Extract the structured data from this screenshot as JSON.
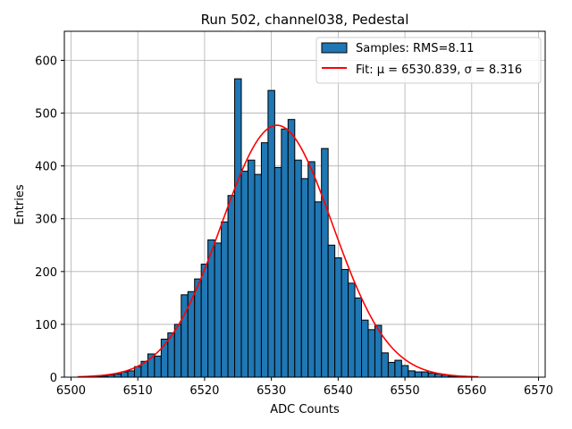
{
  "chart_data": {
    "type": "bar",
    "title": "Run 502, channel038, Pedestal",
    "xlabel": "ADC Counts",
    "ylabel": "Entries",
    "xlim": [
      6499,
      6571
    ],
    "ylim": [
      0,
      655
    ],
    "grid": true,
    "legend_placement": "top-right",
    "bin_width": 1,
    "xticks": [
      6500,
      6510,
      6520,
      6530,
      6540,
      6550,
      6560,
      6570
    ],
    "yticks": [
      0,
      100,
      200,
      300,
      400,
      500,
      600
    ],
    "series": [
      {
        "name": "Samples: RMS=8.11",
        "kind": "histogram",
        "color": "#1f77b4",
        "edgecolor": "#000000",
        "bins": [
          [
            6503,
            1
          ],
          [
            6504,
            1
          ],
          [
            6505,
            2
          ],
          [
            6506,
            4
          ],
          [
            6507,
            6
          ],
          [
            6508,
            10
          ],
          [
            6509,
            12
          ],
          [
            6510,
            20
          ],
          [
            6511,
            30
          ],
          [
            6512,
            44
          ],
          [
            6513,
            40
          ],
          [
            6514,
            72
          ],
          [
            6515,
            84
          ],
          [
            6516,
            100
          ],
          [
            6517,
            156
          ],
          [
            6518,
            162
          ],
          [
            6519,
            186
          ],
          [
            6520,
            214
          ],
          [
            6521,
            260
          ],
          [
            6522,
            254
          ],
          [
            6523,
            294
          ],
          [
            6524,
            344
          ],
          [
            6525,
            565
          ],
          [
            6526,
            390
          ],
          [
            6527,
            411
          ],
          [
            6528,
            384
          ],
          [
            6529,
            444
          ],
          [
            6530,
            543
          ],
          [
            6531,
            397
          ],
          [
            6532,
            470
          ],
          [
            6533,
            488
          ],
          [
            6534,
            411
          ],
          [
            6535,
            376
          ],
          [
            6536,
            408
          ],
          [
            6537,
            332
          ],
          [
            6538,
            433
          ],
          [
            6539,
            250
          ],
          [
            6540,
            226
          ],
          [
            6541,
            204
          ],
          [
            6542,
            178
          ],
          [
            6543,
            150
          ],
          [
            6544,
            108
          ],
          [
            6545,
            90
          ],
          [
            6546,
            98
          ],
          [
            6547,
            46
          ],
          [
            6548,
            28
          ],
          [
            6549,
            32
          ],
          [
            6550,
            22
          ],
          [
            6551,
            12
          ],
          [
            6552,
            10
          ],
          [
            6553,
            10
          ],
          [
            6554,
            8
          ],
          [
            6555,
            6
          ],
          [
            6556,
            4
          ],
          [
            6557,
            2
          ],
          [
            6558,
            1
          ],
          [
            6559,
            1
          ]
        ]
      },
      {
        "name": "Fit: μ = 6530.839, σ = 8.316",
        "kind": "gaussian-fit",
        "color": "#ff0000",
        "mu": 6530.839,
        "sigma": 8.316,
        "amplitude": 477,
        "x_range": [
          6501,
          6561
        ]
      }
    ]
  }
}
